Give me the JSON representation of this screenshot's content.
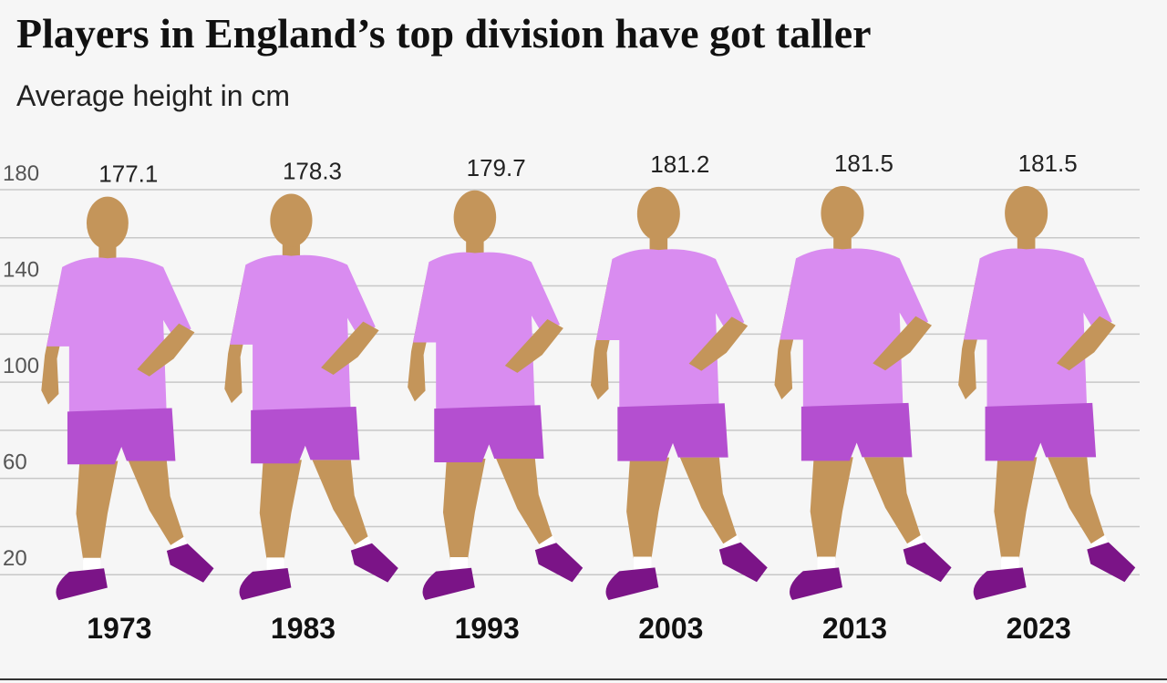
{
  "chart_data": {
    "type": "pictogram",
    "title": "Players in England’s top division have got taller",
    "subtitle": "Average height in cm",
    "categories": [
      "1973",
      "1983",
      "1993",
      "2003",
      "2013",
      "2023"
    ],
    "values": [
      177.1,
      178.3,
      179.7,
      181.2,
      181.5,
      181.5
    ],
    "ylim": [
      0,
      180
    ],
    "yticks": [
      180,
      140,
      100,
      60,
      20
    ],
    "yminorticks": [
      160,
      120,
      80,
      40
    ],
    "grid": true,
    "colors": {
      "skin": "#c4955a",
      "shirt": "#d98cf0",
      "shorts": "#b44fd0",
      "shoes": "#7b1487",
      "socks": "#ffffff"
    }
  }
}
